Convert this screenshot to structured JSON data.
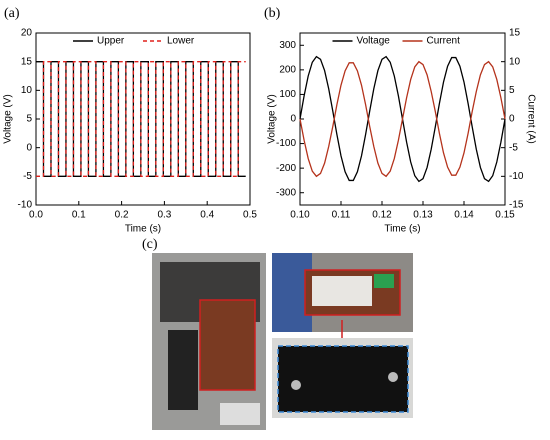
{
  "chart_data": [
    {
      "type": "line",
      "panel_label": "(a)",
      "xlabel": "Time (s)",
      "ylabel": "Voltage (V)",
      "x": [
        0,
        0.0175,
        0.0175,
        0.035,
        0.035,
        0.0525,
        0.0525,
        0.07,
        0.07,
        0.0875,
        0.0875,
        0.105,
        0.105,
        0.1225,
        0.1225,
        0.14,
        0.14,
        0.1575,
        0.1575,
        0.175,
        0.175,
        0.1925,
        0.1925,
        0.21,
        0.21,
        0.2275,
        0.2275,
        0.245,
        0.245,
        0.2625,
        0.2625,
        0.28,
        0.28,
        0.2975,
        0.2975,
        0.315,
        0.315,
        0.3325,
        0.3325,
        0.35,
        0.35,
        0.3675,
        0.3675,
        0.385,
        0.385,
        0.4025,
        0.4025,
        0.42,
        0.42,
        0.4375,
        0.4375,
        0.455,
        0.455,
        0.4725,
        0.4725,
        0.49
      ],
      "series": [
        {
          "name": "Upper",
          "color": "#000000",
          "line_style": "solid",
          "values": [
            15,
            15,
            -5,
            -5,
            15,
            15,
            -5,
            -5,
            15,
            15,
            -5,
            -5,
            15,
            15,
            -5,
            -5,
            15,
            15,
            -5,
            -5,
            15,
            15,
            -5,
            -5,
            15,
            15,
            -5,
            -5,
            15,
            15,
            -5,
            -5,
            15,
            15,
            -5,
            -5,
            15,
            15,
            -5,
            -5,
            15,
            15,
            -5,
            -5,
            15,
            15,
            -5,
            -5,
            15,
            15,
            -5,
            -5,
            15,
            15,
            -5,
            -5
          ]
        },
        {
          "name": "Lower",
          "color": "#e0201b",
          "line_style": "dashed",
          "values": [
            -5,
            -5,
            15,
            15,
            -5,
            -5,
            15,
            15,
            -5,
            -5,
            15,
            15,
            -5,
            -5,
            15,
            15,
            -5,
            -5,
            15,
            15,
            -5,
            -5,
            15,
            15,
            -5,
            -5,
            15,
            15,
            -5,
            -5,
            15,
            15,
            -5,
            -5,
            15,
            15,
            -5,
            -5,
            15,
            15,
            -5,
            -5,
            15,
            15,
            -5,
            -5,
            15,
            15,
            -5,
            -5,
            15,
            15,
            -5,
            -5,
            15,
            15
          ]
        }
      ],
      "xlim": [
        0,
        0.5
      ],
      "xticks": [
        {
          "value": 0,
          "label": "0.0"
        },
        0.1,
        0.2,
        0.3,
        0.4,
        0.5
      ],
      "ylim": [
        -10,
        20
      ],
      "yticks": [
        -10,
        -5,
        0,
        5,
        10,
        15,
        20
      ],
      "legend": "upper center"
    },
    {
      "type": "line",
      "panel_label": "(b)",
      "xlabel": "Time (s)",
      "ylabel": "Voltage (V)",
      "y2label": "Current (A)",
      "x": [
        0.1,
        0.101,
        0.102,
        0.103,
        0.104,
        0.105,
        0.106,
        0.107,
        0.108,
        0.109,
        0.11,
        0.111,
        0.112,
        0.113,
        0.114,
        0.115,
        0.116,
        0.117,
        0.118,
        0.119,
        0.12,
        0.121,
        0.122,
        0.123,
        0.124,
        0.125,
        0.126,
        0.127,
        0.128,
        0.129,
        0.13,
        0.131,
        0.132,
        0.133,
        0.134,
        0.135,
        0.136,
        0.137,
        0.138,
        0.139,
        0.14,
        0.141,
        0.142,
        0.143,
        0.144,
        0.145,
        0.146,
        0.147,
        0.148,
        0.149,
        0.15
      ],
      "series": [
        {
          "name": "Voltage",
          "color": "#000000",
          "line_style": "solid",
          "values": [
            0,
            94,
            175,
            231,
            254,
            243,
            197,
            123,
            32,
            -63,
            -150,
            -215,
            -250,
            -250,
            -215,
            -150,
            -63,
            32,
            123,
            197,
            243,
            254,
            231,
            175,
            94,
            0,
            -94,
            -175,
            -231,
            -254,
            -243,
            -197,
            -123,
            -32,
            63,
            150,
            215,
            250,
            250,
            215,
            150,
            63,
            -32,
            -123,
            -197,
            -243,
            -254,
            -231,
            -175,
            -94,
            0
          ]
        },
        {
          "name": "Current",
          "color": "#b5331c",
          "line_style": "solid",
          "axis": "y2",
          "values": [
            0,
            -3.7,
            -6.9,
            -9.1,
            -10,
            -9.5,
            -7.7,
            -4.8,
            -1.3,
            2.5,
            5.9,
            8.4,
            9.8,
            9.8,
            8.4,
            5.9,
            2.5,
            -1.3,
            -4.8,
            -7.7,
            -9.5,
            -10,
            -9.1,
            -6.9,
            -3.7,
            0,
            3.7,
            6.9,
            9.1,
            10,
            9.5,
            7.7,
            4.8,
            1.3,
            -2.5,
            -5.9,
            -8.4,
            -9.8,
            -9.8,
            -8.4,
            -5.9,
            -2.5,
            1.3,
            4.8,
            7.7,
            9.5,
            10,
            9.1,
            6.9,
            3.7,
            0
          ]
        }
      ],
      "xlim": [
        0.1,
        0.15
      ],
      "xticks": [
        {
          "value": 0.1,
          "label": "0.10"
        },
        0.11,
        0.12,
        0.13,
        0.14,
        0.15
      ],
      "ylim": [
        -350,
        350
      ],
      "yticks": [
        -300,
        -200,
        -100,
        0,
        100,
        200,
        300
      ],
      "y2lim": [
        -15,
        15
      ],
      "y2ticks": [
        -15,
        -10,
        -5,
        0,
        5,
        10,
        15
      ],
      "legend": "upper center"
    }
  ],
  "photo_panel": {
    "label": "(c)"
  }
}
